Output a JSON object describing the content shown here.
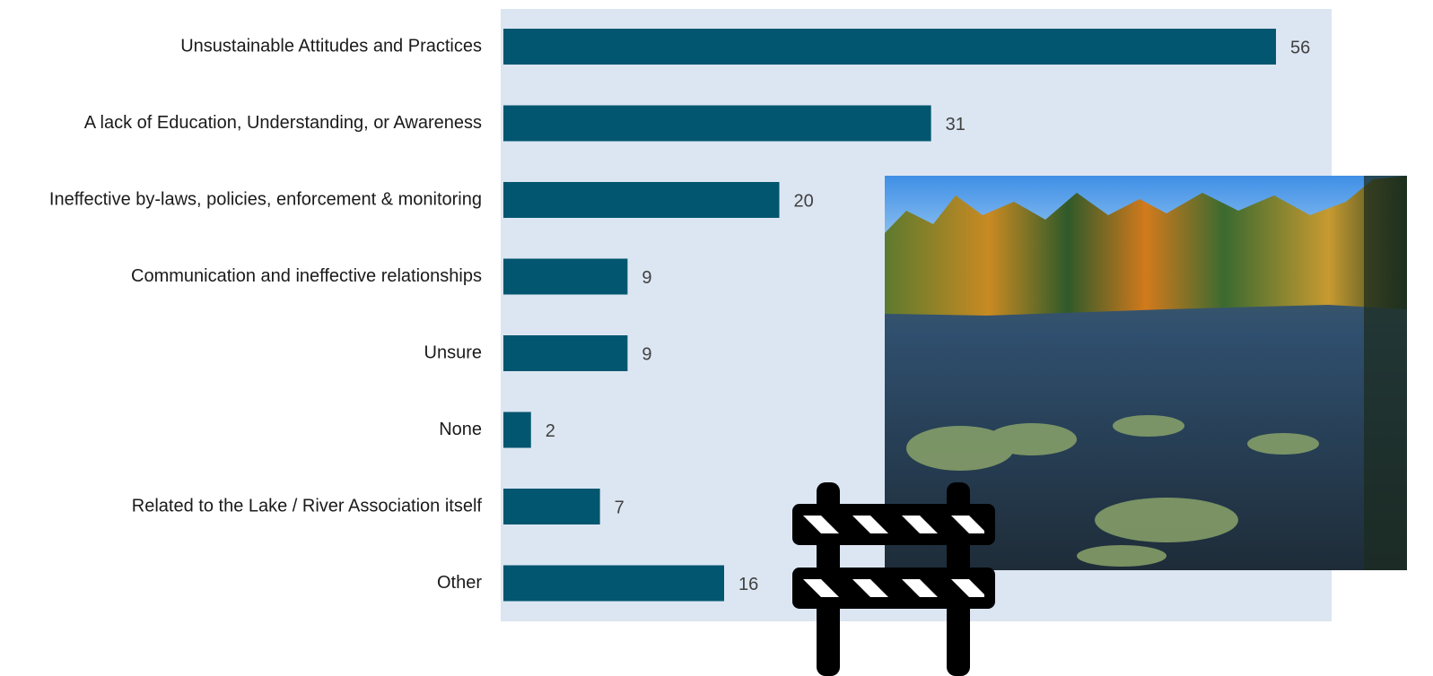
{
  "chart_data": {
    "type": "bar",
    "orientation": "horizontal",
    "categories": [
      "Unsustainable Attitudes and Practices",
      "A lack of Education, Understanding, or Awareness",
      "Ineffective by-laws, policies, enforcement & monitoring",
      "Communication and ineffective relationships",
      "Unsure",
      "None",
      "Related to the Lake / River Association itself",
      "Other"
    ],
    "values": [
      56,
      31,
      20,
      9,
      9,
      2,
      7,
      16
    ],
    "color": "#02566f",
    "data_labels": true
  }
}
